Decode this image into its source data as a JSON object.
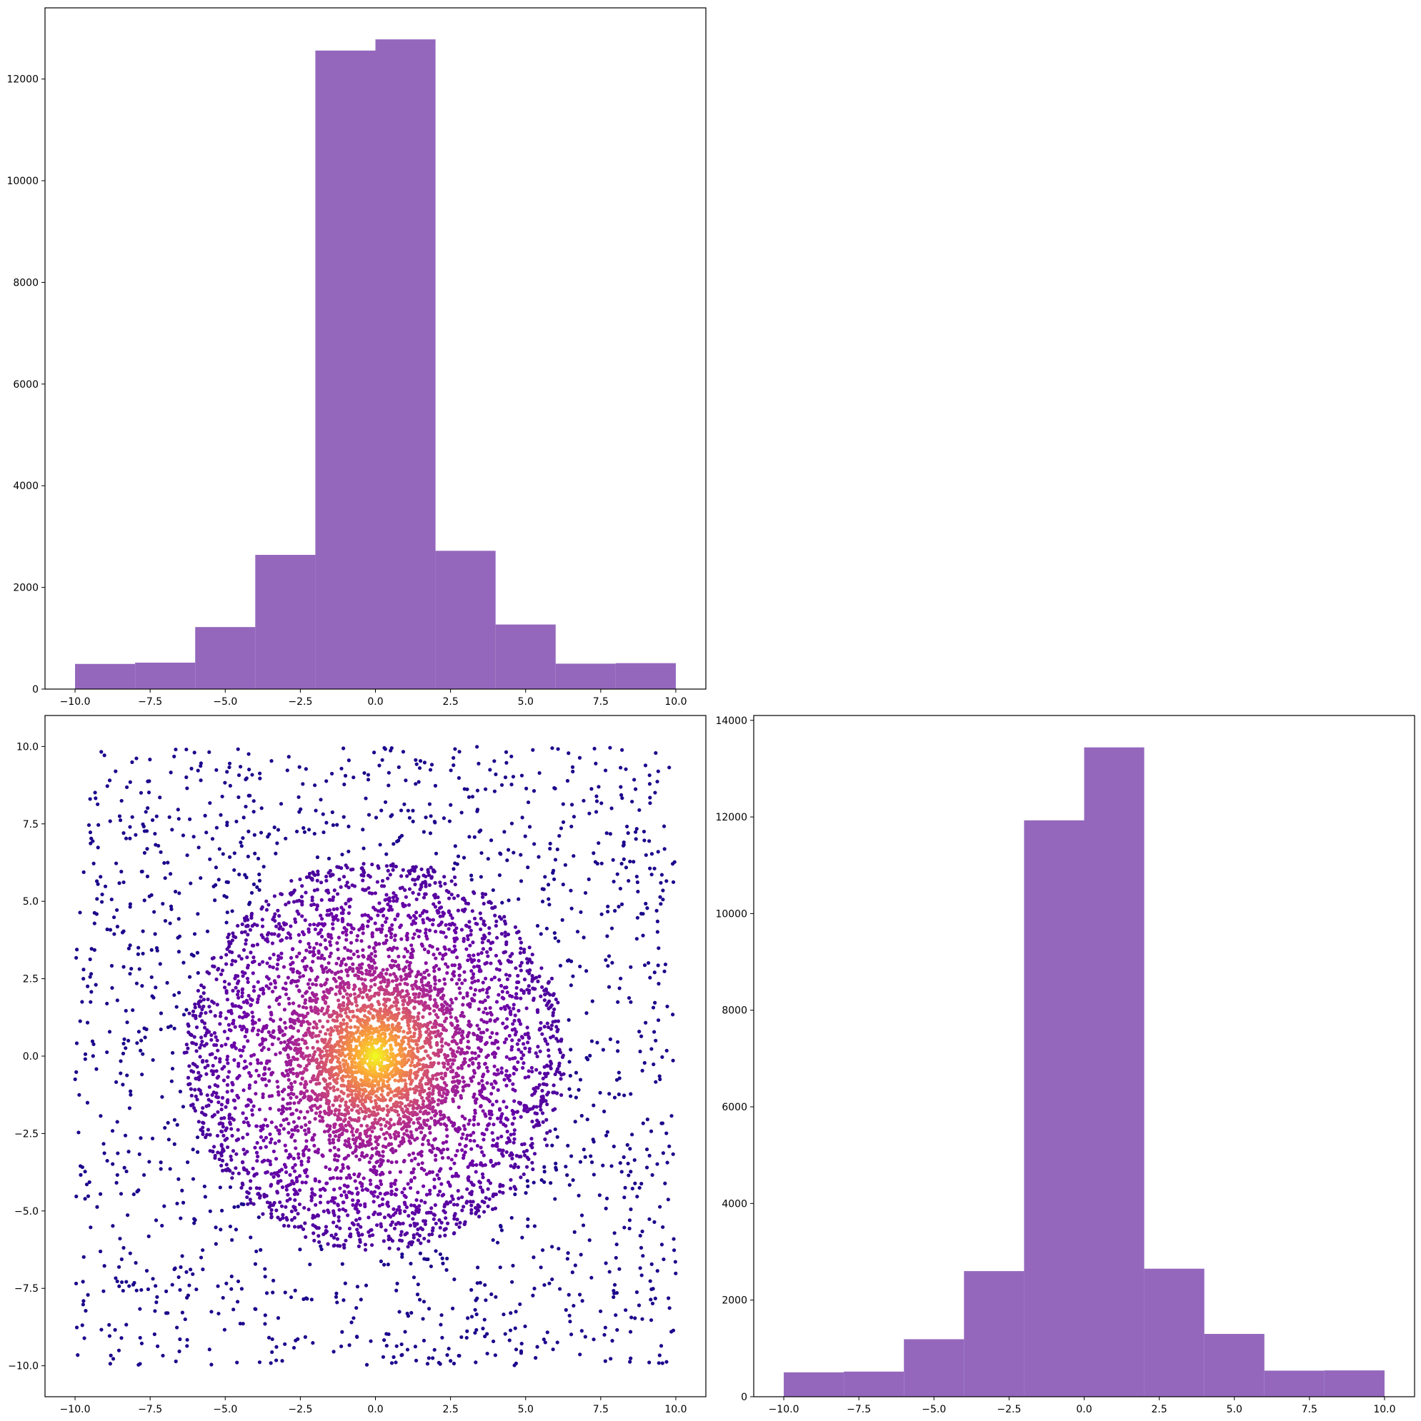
{
  "chart_data": [
    {
      "id": "top-histogram",
      "type": "bar",
      "bin_edges": [
        -10,
        -8,
        -6,
        -4,
        -2,
        0,
        2,
        4,
        6,
        8,
        10
      ],
      "values": [
        495,
        520,
        1220,
        2640,
        12560,
        12780,
        2720,
        1270,
        500,
        510
      ],
      "color": "#9467bd",
      "xlim": [
        -11,
        11
      ],
      "ylim": [
        0,
        13400
      ],
      "xticks": [
        -10,
        -7.5,
        -5,
        -2.5,
        0,
        2.5,
        5,
        7.5,
        10
      ],
      "xtick_labels": [
        "−10.0",
        "−7.5",
        "−5.0",
        "−2.5",
        "0.0",
        "2.5",
        "5.0",
        "7.5",
        "10.0"
      ],
      "yticks": [
        0,
        2000,
        4000,
        6000,
        8000,
        10000,
        12000
      ],
      "ytick_labels": [
        "0",
        "2000",
        "4000",
        "6000",
        "8000",
        "10000",
        "12000"
      ],
      "title": "",
      "xlabel": "",
      "ylabel": ""
    },
    {
      "id": "scatter",
      "type": "scatter",
      "description_of_points": "≈10000 points uniform in [-10,10]^2 plus a dense cloud inside radius ≈6 around the origin; colour by density with plasma colormap (dark purple outside, yellow at center)",
      "colormap": [
        "#0d0887",
        "#6a00a8",
        "#b12a90",
        "#e16462",
        "#fca636",
        "#f0f921"
      ],
      "xlim": [
        -11,
        11
      ],
      "ylim": [
        -11,
        11
      ],
      "xticks": [
        -10,
        -7.5,
        -5,
        -2.5,
        0,
        2.5,
        5,
        7.5,
        10
      ],
      "xtick_labels": [
        "−10.0",
        "−7.5",
        "−5.0",
        "−2.5",
        "0.0",
        "2.5",
        "5.0",
        "7.5",
        "10.0"
      ],
      "yticks": [
        -10,
        -7.5,
        -5,
        -2.5,
        0,
        2.5,
        5,
        7.5,
        10
      ],
      "ytick_labels": [
        "−10.0",
        "−7.5",
        "−5.0",
        "−2.5",
        "0.0",
        "2.5",
        "5.0",
        "7.5",
        "10.0"
      ],
      "title": "",
      "xlabel": "",
      "ylabel": ""
    },
    {
      "id": "bottom-right-histogram",
      "type": "bar",
      "bin_edges": [
        -10,
        -8,
        -6,
        -4,
        -2,
        0,
        2,
        4,
        6,
        8,
        10
      ],
      "values": [
        505,
        520,
        1190,
        2600,
        11930,
        13440,
        2650,
        1300,
        540,
        545
      ],
      "color": "#9467bd",
      "xlim": [
        -11,
        11
      ],
      "ylim": [
        0,
        14100
      ],
      "xticks": [
        -10,
        -7.5,
        -5,
        -2.5,
        0,
        2.5,
        5,
        7.5,
        10
      ],
      "xtick_labels": [
        "−10.0",
        "−7.5",
        "−5.0",
        "−2.5",
        "0.0",
        "2.5",
        "5.0",
        "7.5",
        "10.0"
      ],
      "yticks": [
        0,
        2000,
        4000,
        6000,
        8000,
        10000,
        12000,
        14000
      ],
      "ytick_labels": [
        "0",
        "2000",
        "4000",
        "6000",
        "8000",
        "10000",
        "12000",
        "14000"
      ],
      "title": "",
      "xlabel": "",
      "ylabel": ""
    }
  ]
}
